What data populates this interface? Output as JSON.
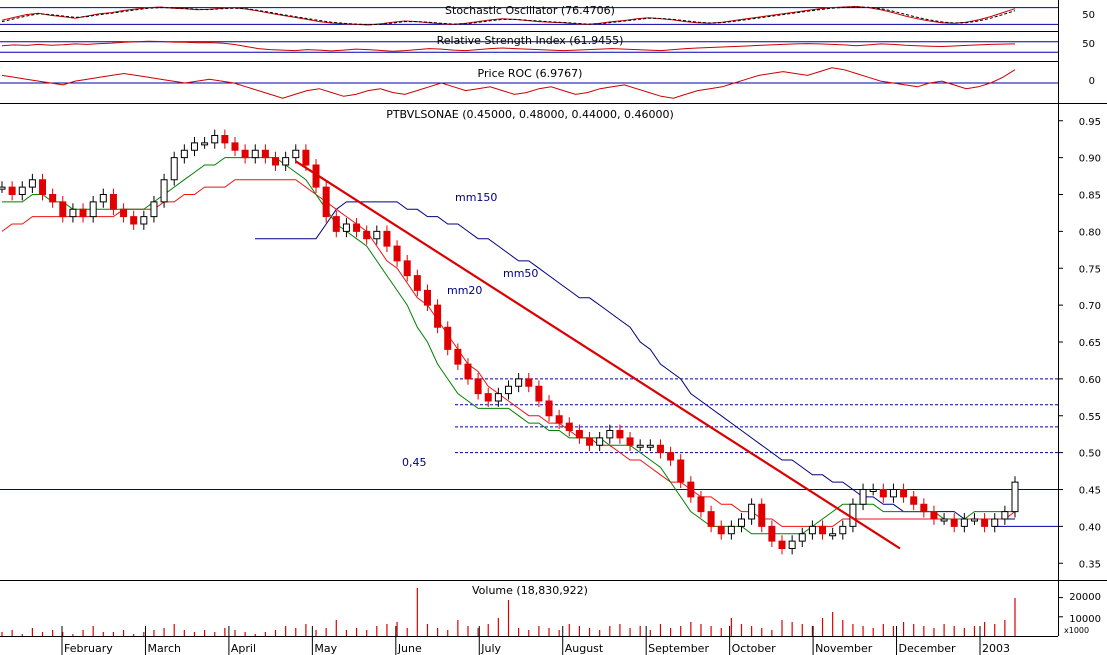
{
  "colors": {
    "background": "#ffffff",
    "frame": "#000000",
    "candle_up": "#000000",
    "candle_down": "#e00000",
    "mm20": "#008000",
    "mm50": "#ee1111",
    "mm150": "#000080",
    "trendline": "#dd0000",
    "indicator_line": "#cc0000",
    "reference_line": "#0000aa",
    "label_text": "#000080",
    "volume_bar": "#dd0000"
  },
  "chart_data": [
    {
      "type": "line",
      "title": "Stochastic Oscillator (76.4706)",
      "yticks": [
        50
      ],
      "ytick_labels": [
        "50"
      ],
      "ylim": [
        0,
        100
      ],
      "reference_lines": [
        20,
        80
      ],
      "series": [
        {
          "values": [
            35,
            45,
            55,
            60,
            52,
            48,
            42,
            50,
            58,
            62,
            70,
            75,
            80,
            82,
            78,
            76,
            72,
            74,
            78,
            80,
            75,
            68,
            60,
            52,
            45,
            38,
            30,
            25,
            22,
            20,
            18,
            22,
            28,
            32,
            30,
            26,
            22,
            20,
            24,
            30,
            36,
            40,
            38,
            34,
            30,
            28,
            26,
            22,
            20,
            24,
            30,
            34,
            40,
            44,
            40,
            36,
            30,
            26,
            24,
            28,
            34,
            40,
            46,
            52,
            58,
            64,
            70,
            76,
            80,
            82,
            84,
            80,
            72,
            62,
            50,
            40,
            32,
            26,
            24,
            28,
            36,
            48,
            62,
            76
          ]
        },
        {
          "values": [
            30,
            40,
            50,
            58,
            55,
            50,
            45,
            48,
            55,
            60,
            66,
            72,
            78,
            80,
            79,
            77,
            74,
            73,
            76,
            78,
            76,
            70,
            63,
            55,
            48,
            41,
            34,
            28,
            24,
            21,
            19,
            20,
            25,
            30,
            30,
            28,
            24,
            21,
            22,
            27,
            33,
            38,
            38,
            35,
            32,
            29,
            27,
            24,
            21,
            22,
            27,
            32,
            37,
            42,
            41,
            38,
            33,
            28,
            25,
            26,
            31,
            37,
            43,
            49,
            55,
            61,
            67,
            73,
            78,
            81,
            82,
            81,
            76,
            67,
            56,
            45,
            36,
            29,
            25,
            26,
            32,
            42,
            55,
            69
          ]
        }
      ]
    },
    {
      "type": "line",
      "title": "Relative Strength Index (61.9455)",
      "yticks": [
        50
      ],
      "ytick_labels": [
        "50"
      ],
      "ylim": [
        0,
        100
      ],
      "reference_lines": [
        30,
        70
      ],
      "series": [
        {
          "values": [
            55,
            58,
            56,
            60,
            57,
            59,
            62,
            60,
            63,
            65,
            68,
            70,
            72,
            71,
            69,
            68,
            66,
            67,
            65,
            60,
            52,
            44,
            40,
            38,
            36,
            40,
            38,
            35,
            38,
            42,
            40,
            37,
            34,
            36,
            40,
            44,
            42,
            38,
            36,
            40,
            44,
            46,
            44,
            42,
            40,
            38,
            36,
            38,
            40,
            42,
            44,
            42,
            40,
            38,
            36,
            40,
            44,
            46,
            48,
            50,
            52,
            54,
            56,
            58,
            60,
            62,
            63,
            62,
            60,
            58,
            55,
            58,
            62,
            60,
            57,
            55,
            53,
            52,
            54,
            56,
            58,
            60,
            61,
            62
          ]
        }
      ]
    },
    {
      "type": "line",
      "title": "Price ROC (6.9767)",
      "yticks": [
        0
      ],
      "ytick_labels": [
        "0"
      ],
      "ylim": [
        -10,
        10
      ],
      "reference_lines": [
        0
      ],
      "series": [
        {
          "values": [
            4,
            3,
            2,
            1,
            0,
            -1,
            1,
            2,
            3,
            4,
            5,
            4,
            3,
            2,
            1,
            0,
            1,
            2,
            1,
            0,
            -2,
            -4,
            -6,
            -8,
            -6,
            -4,
            -3,
            -5,
            -7,
            -6,
            -4,
            -3,
            -5,
            -6,
            -4,
            -2,
            0,
            -2,
            -4,
            -3,
            -2,
            -4,
            -6,
            -5,
            -3,
            -2,
            -4,
            -6,
            -5,
            -3,
            -2,
            -1,
            -3,
            -5,
            -7,
            -8,
            -6,
            -4,
            -3,
            -2,
            0,
            2,
            4,
            5,
            6,
            5,
            4,
            6,
            8,
            7,
            5,
            3,
            1,
            0,
            -1,
            -2,
            0,
            1,
            -1,
            -3,
            -2,
            0,
            3,
            7
          ]
        }
      ]
    },
    {
      "type": "candlestick",
      "title": "PTBVLSONAE (0.45000, 0.48000, 0.44000, 0.46000)",
      "ylim": [
        0.33,
        0.97
      ],
      "yticks": [
        0.35,
        0.4,
        0.45,
        0.5,
        0.55,
        0.6,
        0.65,
        0.7,
        0.75,
        0.8,
        0.85,
        0.9,
        0.95
      ],
      "ytick_labels": [
        "0.35",
        "0.40",
        "0.45",
        "0.50",
        "0.55",
        "0.60",
        "0.65",
        "0.70",
        "0.75",
        "0.80",
        "0.85",
        "0.90",
        "0.95"
      ],
      "months": [
        "February",
        "March",
        "April",
        "May",
        "June",
        "July",
        "August",
        "September",
        "October",
        "November",
        "December",
        "2003"
      ],
      "labels": {
        "mm150": "mm150",
        "mm50": "mm50",
        "mm20": "mm20",
        "level": "0,45"
      },
      "horizontal_levels": [
        0.45
      ],
      "dashed_levels": [
        0.6,
        0.565,
        0.535,
        0.5
      ],
      "support_levels": [
        0.4
      ],
      "close": [
        0.86,
        0.85,
        0.86,
        0.87,
        0.85,
        0.84,
        0.82,
        0.83,
        0.82,
        0.84,
        0.85,
        0.83,
        0.82,
        0.81,
        0.82,
        0.84,
        0.87,
        0.9,
        0.91,
        0.92,
        0.92,
        0.93,
        0.92,
        0.91,
        0.9,
        0.91,
        0.9,
        0.89,
        0.9,
        0.91,
        0.89,
        0.86,
        0.82,
        0.8,
        0.81,
        0.8,
        0.79,
        0.8,
        0.78,
        0.76,
        0.74,
        0.72,
        0.7,
        0.67,
        0.64,
        0.62,
        0.6,
        0.58,
        0.57,
        0.58,
        0.59,
        0.6,
        0.59,
        0.57,
        0.55,
        0.54,
        0.53,
        0.52,
        0.51,
        0.52,
        0.53,
        0.52,
        0.51,
        0.51,
        0.51,
        0.5,
        0.49,
        0.46,
        0.44,
        0.42,
        0.4,
        0.39,
        0.4,
        0.41,
        0.43,
        0.4,
        0.38,
        0.37,
        0.38,
        0.39,
        0.4,
        0.39,
        0.39,
        0.4,
        0.43,
        0.45,
        0.45,
        0.44,
        0.45,
        0.44,
        0.43,
        0.42,
        0.41,
        0.41,
        0.4,
        0.41,
        0.41,
        0.4,
        0.41,
        0.42,
        0.46
      ],
      "mm20": [
        0.84,
        0.84,
        0.84,
        0.85,
        0.85,
        0.84,
        0.84,
        0.83,
        0.83,
        0.83,
        0.83,
        0.83,
        0.83,
        0.83,
        0.83,
        0.84,
        0.85,
        0.86,
        0.87,
        0.88,
        0.89,
        0.89,
        0.9,
        0.9,
        0.9,
        0.9,
        0.9,
        0.9,
        0.89,
        0.88,
        0.87,
        0.85,
        0.83,
        0.81,
        0.8,
        0.79,
        0.78,
        0.76,
        0.74,
        0.72,
        0.7,
        0.67,
        0.65,
        0.62,
        0.6,
        0.58,
        0.57,
        0.56,
        0.56,
        0.56,
        0.56,
        0.55,
        0.54,
        0.54,
        0.53,
        0.53,
        0.52,
        0.52,
        0.52,
        0.52,
        0.51,
        0.51,
        0.51,
        0.5,
        0.49,
        0.48,
        0.46,
        0.44,
        0.42,
        0.41,
        0.4,
        0.4,
        0.4,
        0.4,
        0.39,
        0.39,
        0.39,
        0.39,
        0.39,
        0.39,
        0.4,
        0.41,
        0.42,
        0.43,
        0.43,
        0.43,
        0.43,
        0.42,
        0.42,
        0.42,
        0.42,
        0.42,
        0.42,
        0.41,
        0.41,
        0.41,
        0.42,
        0.42,
        0.42,
        0.42,
        0.42
      ],
      "mm50": [
        0.8,
        0.81,
        0.81,
        0.82,
        0.82,
        0.82,
        0.82,
        0.82,
        0.82,
        0.82,
        0.82,
        0.82,
        0.83,
        0.83,
        0.83,
        0.83,
        0.84,
        0.84,
        0.85,
        0.85,
        0.86,
        0.86,
        0.86,
        0.87,
        0.87,
        0.87,
        0.87,
        0.87,
        0.87,
        0.87,
        0.86,
        0.85,
        0.84,
        0.83,
        0.82,
        0.81,
        0.8,
        0.78,
        0.76,
        0.75,
        0.73,
        0.71,
        0.7,
        0.68,
        0.66,
        0.64,
        0.62,
        0.61,
        0.59,
        0.58,
        0.57,
        0.56,
        0.55,
        0.55,
        0.54,
        0.54,
        0.53,
        0.52,
        0.52,
        0.51,
        0.51,
        0.5,
        0.49,
        0.49,
        0.48,
        0.47,
        0.46,
        0.46,
        0.45,
        0.44,
        0.44,
        0.43,
        0.43,
        0.42,
        0.42,
        0.41,
        0.41,
        0.4,
        0.4,
        0.4,
        0.4,
        0.4,
        0.4,
        0.41,
        0.41,
        0.41,
        0.41,
        0.41,
        0.41,
        0.41,
        0.41,
        0.41,
        0.41,
        0.41,
        0.41,
        0.41,
        0.41,
        0.41,
        0.41,
        0.41,
        0.42
      ],
      "mm150": [
        null,
        null,
        null,
        null,
        null,
        null,
        null,
        null,
        null,
        null,
        null,
        null,
        null,
        null,
        null,
        null,
        null,
        null,
        null,
        null,
        null,
        null,
        null,
        null,
        null,
        null,
        null,
        null,
        null,
        null,
        null,
        0.79,
        0.81,
        0.83,
        0.84,
        0.84,
        0.84,
        0.84,
        0.84,
        0.84,
        0.83,
        0.83,
        0.82,
        0.82,
        0.81,
        0.81,
        0.8,
        0.79,
        0.79,
        0.78,
        0.77,
        0.76,
        0.76,
        0.75,
        0.74,
        0.73,
        0.72,
        0.71,
        0.71,
        0.7,
        0.69,
        0.68,
        0.67,
        0.65,
        0.64,
        0.62,
        0.61,
        0.6,
        0.58,
        0.57,
        0.56,
        0.55,
        0.54,
        0.53,
        0.52,
        0.51,
        0.5,
        0.49,
        0.49,
        0.48,
        0.47,
        0.47,
        0.46,
        0.46,
        0.45,
        0.44,
        0.44,
        0.43,
        0.43,
        0.42,
        0.42,
        0.42,
        0.42,
        0.42,
        0.42,
        0.41,
        0.41,
        0.41,
        0.41,
        0.41,
        0.41
      ]
    },
    {
      "type": "bar",
      "title": "Volume (18,830,922)",
      "ytick_labels": [
        "20000",
        "10000"
      ],
      "yticks": [
        20000,
        10000
      ],
      "unit_label": "x1000",
      "ylim": [
        0,
        26000
      ],
      "values": [
        2,
        3,
        1,
        4,
        2,
        3,
        2,
        1,
        3,
        5,
        2,
        2,
        3,
        1,
        2,
        3,
        4,
        6,
        3,
        2,
        3,
        2,
        4,
        3,
        2,
        1,
        2,
        3,
        5,
        4,
        6,
        3,
        4,
        8,
        3,
        4,
        3,
        5,
        6,
        7,
        4,
        24,
        6,
        4,
        3,
        8,
        5,
        4,
        6,
        9,
        18,
        4,
        3,
        5,
        4,
        3,
        6,
        5,
        4,
        3,
        5,
        6,
        4,
        5,
        3,
        6,
        4,
        5,
        7,
        6,
        5,
        4,
        9,
        6,
        5,
        4,
        3,
        8,
        7,
        6,
        5,
        9,
        12,
        8,
        6,
        5,
        4,
        6,
        5,
        7,
        6,
        5,
        4,
        6,
        5,
        4,
        5,
        7,
        6,
        8,
        19
      ]
    }
  ]
}
